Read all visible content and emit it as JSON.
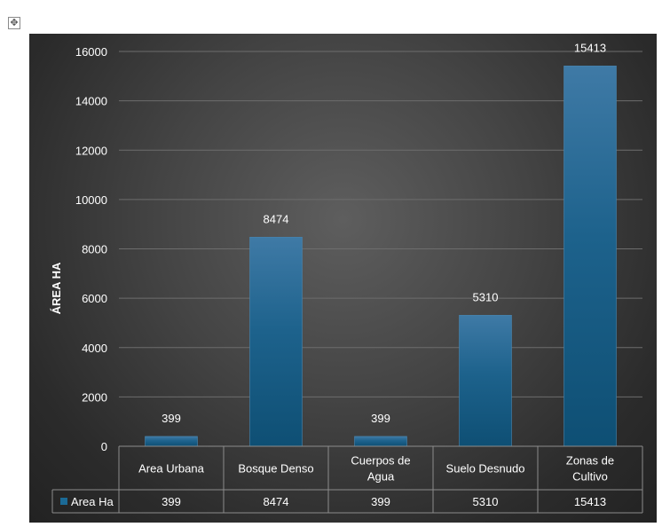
{
  "chart_data": {
    "type": "bar",
    "ylabel": "ÁREA HA",
    "xlabel": "",
    "ylim": [
      0,
      16000
    ],
    "y_ticks": [
      "0",
      "2000",
      "4000",
      "6000",
      "8000",
      "10000",
      "12000",
      "14000",
      "16000"
    ],
    "grid": true,
    "categories": [
      "Area Urbana",
      "Bosque Denso",
      "Cuerpos de Agua",
      "Suelo Desnudo",
      "Zonas de Cultivo"
    ],
    "series": [
      {
        "name": "Area Ha",
        "values": [
          399,
          8474,
          399,
          5310,
          15413
        ]
      }
    ],
    "data_table": true,
    "bar_color": "#1b5e85"
  },
  "icons": {
    "move_handle": "move-arrows-icon"
  }
}
